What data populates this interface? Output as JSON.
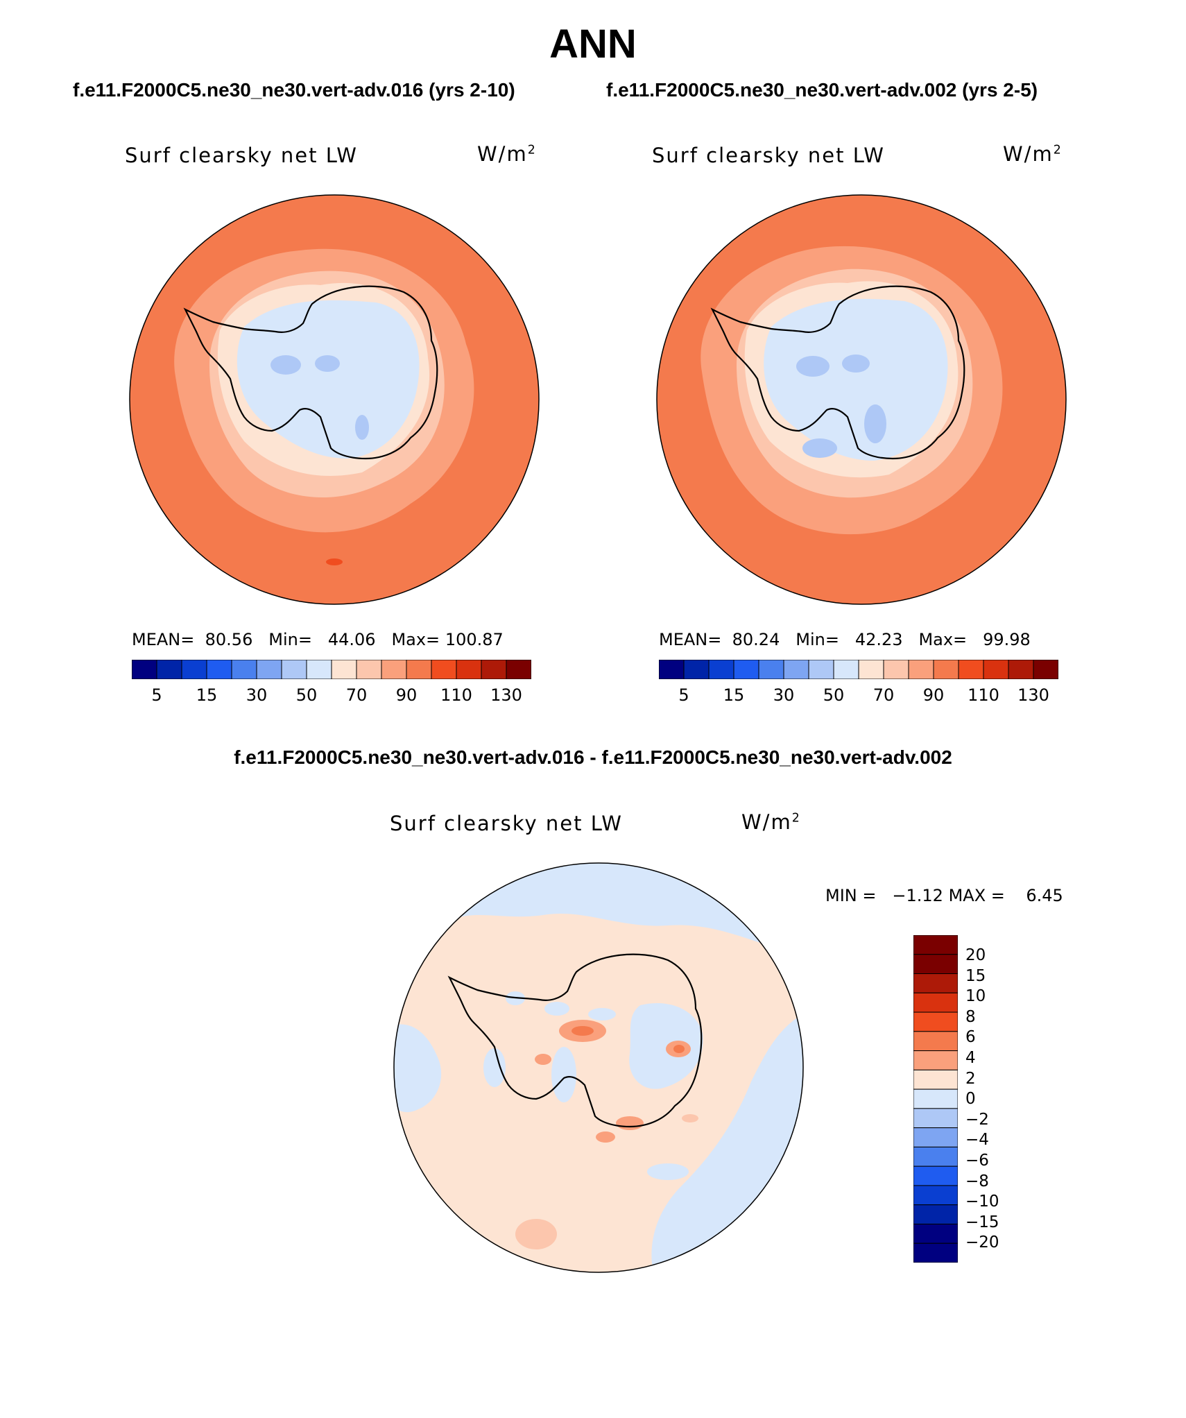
{
  "figure": {
    "title": "ANN",
    "diff_title": "f.e11.F2000C5.ne30_ne30.vert-adv.016 - f.e11.F2000C5.ne30_ne30.vert-adv.002"
  },
  "panels": [
    {
      "case_title": "f.e11.F2000C5.ne30_ne30.vert-adv.016 (yrs 2-10)",
      "variable": "Surf clearsky net LW",
      "units_base": "W/m",
      "units_exp": "2",
      "mean_label": "MEAN=",
      "mean": "80.56",
      "min_label": "Min=",
      "min": "44.06",
      "max_label": "Max=",
      "max": "100.87"
    },
    {
      "case_title": "f.e11.F2000C5.ne30_ne30.vert-adv.002 (yrs 2-5)",
      "variable": "Surf clearsky net LW",
      "units_base": "W/m",
      "units_exp": "2",
      "mean_label": "MEAN=",
      "mean": "80.24",
      "min_label": "Min=",
      "min": "42.23",
      "max_label": "Max=",
      "max": "99.98"
    },
    {
      "variable": "Surf clearsky net LW",
      "units_base": "W/m",
      "units_exp": "2",
      "min_label": "MIN =",
      "min": "−1.12",
      "max_label": "MAX =",
      "max": "6.45"
    }
  ],
  "colorbars": {
    "top_colors": [
      "#000080",
      "#0024a8",
      "#0a3fd1",
      "#1f5cf0",
      "#4a80ee",
      "#7ea5f2",
      "#aec8f6",
      "#d7e7fb",
      "#fde4d3",
      "#fcc6ad",
      "#faa07c",
      "#f47a4d",
      "#f04d1f",
      "#d9320f",
      "#ad1a08",
      "#7a0000"
    ],
    "top_ticks": [
      "5",
      "15",
      "30",
      "50",
      "70",
      "90",
      "110",
      "130"
    ],
    "diff_colors": [
      "#7a0000",
      "#ad1a08",
      "#d9320f",
      "#f04d1f",
      "#f47a4d",
      "#faa07c",
      "#fde4d3",
      "#d7e7fb",
      "#aec8f6",
      "#7ea5f2",
      "#4a80ee",
      "#1f5cf0",
      "#0a3fd1",
      "#0024a8",
      "#000080"
    ],
    "diff_ticks": [
      "20",
      "15",
      "10",
      "8",
      "6",
      "4",
      "2",
      "0",
      "−2",
      "−4",
      "−6",
      "−8",
      "−10",
      "−15",
      "−20"
    ]
  }
}
